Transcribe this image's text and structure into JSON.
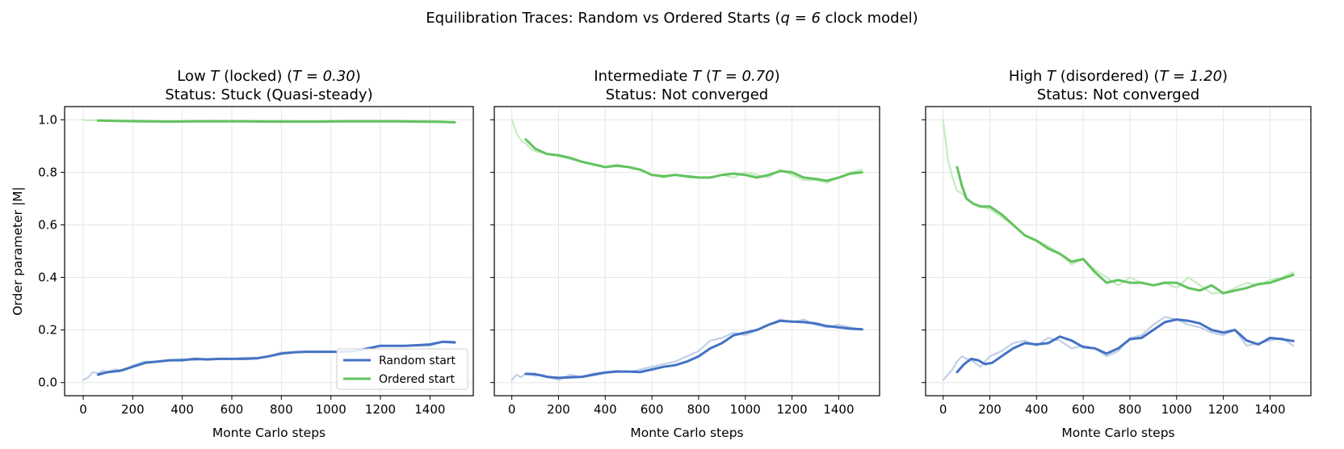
{
  "figure_title": {
    "text_before": "Equilibration Traces: Random vs Ordered Starts (",
    "math": "q = 6",
    "text_after": " clock model)"
  },
  "colors": {
    "random": "#4472c4",
    "random_raw": "#c0cfe8",
    "ordered": "#62c35e",
    "ordered_raw": "#c7ebc3",
    "grid": "#e6e6e6",
    "axis": "#000000"
  },
  "legend": {
    "position": "lower-right",
    "random_label": "Random start",
    "ordered_label": "Ordered start"
  },
  "chart_data": [
    {
      "type": "line",
      "title_line1": {
        "before": "Low ",
        "T": "T",
        "mid": " (locked) (",
        "math": "T = 0.30",
        "after": ")"
      },
      "status": "Status: Stuck (Quasi-steady)",
      "xlabel": "Monte Carlo steps",
      "ylabel": "Order parameter |M|",
      "xlim": [
        -75,
        1575
      ],
      "ylim": [
        -0.05,
        1.05
      ],
      "xticks": [
        0,
        200,
        400,
        600,
        800,
        1000,
        1200,
        1400
      ],
      "yticks": [
        "0.0",
        "0.2",
        "0.4",
        "0.6",
        "0.8",
        "1.0"
      ],
      "series": [
        {
          "name": "Random start (raw)",
          "style": "raw",
          "color_key": "random_raw",
          "x": [
            0,
            20,
            40,
            60,
            80,
            100,
            130,
            160,
            200,
            250,
            300,
            350,
            400,
            450,
            500,
            550,
            600,
            650,
            700,
            750,
            800,
            850,
            900,
            950,
            1000,
            1050,
            1100,
            1150,
            1200,
            1250,
            1300,
            1350,
            1400,
            1450,
            1500
          ],
          "y": [
            0.01,
            0.02,
            0.04,
            0.035,
            0.045,
            0.04,
            0.05,
            0.045,
            0.065,
            0.08,
            0.08,
            0.085,
            0.09,
            0.085,
            0.09,
            0.09,
            0.09,
            0.095,
            0.095,
            0.1,
            0.115,
            0.115,
            0.118,
            0.115,
            0.118,
            0.115,
            0.12,
            0.13,
            0.14,
            0.14,
            0.14,
            0.14,
            0.14,
            0.155,
            0.15
          ]
        },
        {
          "name": "Random start",
          "style": "smooth",
          "color_key": "random",
          "x": [
            60,
            100,
            150,
            200,
            250,
            300,
            350,
            400,
            450,
            500,
            550,
            600,
            650,
            700,
            750,
            800,
            850,
            900,
            950,
            1000,
            1050,
            1100,
            1150,
            1200,
            1250,
            1300,
            1350,
            1400,
            1450,
            1500
          ],
          "y": [
            0.03,
            0.04,
            0.045,
            0.06,
            0.075,
            0.08,
            0.085,
            0.085,
            0.09,
            0.088,
            0.09,
            0.09,
            0.09,
            0.092,
            0.1,
            0.11,
            0.115,
            0.117,
            0.117,
            0.117,
            0.117,
            0.12,
            0.13,
            0.14,
            0.14,
            0.14,
            0.142,
            0.145,
            0.155,
            0.153
          ]
        },
        {
          "name": "Ordered start (raw)",
          "style": "raw",
          "color_key": "ordered_raw",
          "x": [
            0,
            20,
            40,
            60,
            80,
            100,
            150,
            200,
            300,
            400,
            500,
            600,
            700,
            800,
            900,
            1000,
            1100,
            1200,
            1300,
            1400,
            1450,
            1500
          ],
          "y": [
            1.0,
            0.997,
            0.998,
            0.996,
            0.997,
            0.996,
            0.995,
            0.995,
            0.994,
            0.993,
            0.995,
            0.994,
            0.995,
            0.996,
            0.994,
            0.995,
            0.996,
            0.995,
            0.996,
            0.995,
            0.993,
            0.992
          ]
        },
        {
          "name": "Ordered start",
          "style": "smooth",
          "color_key": "ordered",
          "x": [
            60,
            150,
            250,
            350,
            450,
            550,
            650,
            750,
            850,
            950,
            1050,
            1150,
            1250,
            1350,
            1450,
            1500
          ],
          "y": [
            0.997,
            0.995,
            0.994,
            0.993,
            0.994,
            0.994,
            0.994,
            0.993,
            0.993,
            0.993,
            0.994,
            0.994,
            0.994,
            0.993,
            0.992,
            0.99
          ]
        }
      ]
    },
    {
      "type": "line",
      "title_line1": {
        "before": "Intermediate ",
        "T": "T",
        "mid": " (",
        "math": "T = 0.70",
        "after": ")"
      },
      "status": "Status: Not converged",
      "xlabel": "Monte Carlo steps",
      "ylabel": "",
      "xlim": [
        -75,
        1575
      ],
      "ylim": [
        -0.05,
        1.05
      ],
      "xticks": [
        0,
        200,
        400,
        600,
        800,
        1000,
        1200,
        1400
      ],
      "yticks": [
        "",
        "",
        "",
        "",
        "",
        ""
      ],
      "series": [
        {
          "name": "Random start (raw)",
          "style": "raw",
          "color_key": "random_raw",
          "x": [
            0,
            20,
            40,
            60,
            80,
            100,
            130,
            160,
            200,
            250,
            300,
            350,
            400,
            450,
            500,
            550,
            600,
            650,
            700,
            750,
            800,
            850,
            900,
            950,
            1000,
            1050,
            1100,
            1150,
            1200,
            1250,
            1300,
            1350,
            1400,
            1450,
            1500
          ],
          "y": [
            0.01,
            0.03,
            0.02,
            0.035,
            0.03,
            0.025,
            0.03,
            0.02,
            0.01,
            0.03,
            0.02,
            0.035,
            0.04,
            0.045,
            0.04,
            0.05,
            0.06,
            0.07,
            0.08,
            0.1,
            0.12,
            0.16,
            0.17,
            0.19,
            0.18,
            0.2,
            0.22,
            0.24,
            0.23,
            0.24,
            0.22,
            0.21,
            0.22,
            0.21,
            0.2
          ]
        },
        {
          "name": "Random start",
          "style": "smooth",
          "color_key": "random",
          "x": [
            60,
            100,
            150,
            200,
            250,
            300,
            350,
            400,
            450,
            500,
            550,
            600,
            650,
            700,
            750,
            800,
            850,
            900,
            950,
            1000,
            1050,
            1100,
            1150,
            1200,
            1250,
            1300,
            1350,
            1400,
            1450,
            1500
          ],
          "y": [
            0.033,
            0.032,
            0.022,
            0.018,
            0.02,
            0.022,
            0.03,
            0.038,
            0.042,
            0.042,
            0.04,
            0.05,
            0.06,
            0.066,
            0.08,
            0.1,
            0.13,
            0.15,
            0.18,
            0.19,
            0.2,
            0.22,
            0.235,
            0.232,
            0.23,
            0.225,
            0.215,
            0.21,
            0.205,
            0.203
          ]
        },
        {
          "name": "Ordered start (raw)",
          "style": "raw",
          "color_key": "ordered_raw",
          "x": [
            0,
            20,
            40,
            60,
            80,
            100,
            150,
            200,
            250,
            300,
            350,
            400,
            450,
            500,
            550,
            600,
            650,
            700,
            750,
            800,
            850,
            900,
            950,
            1000,
            1050,
            1100,
            1150,
            1200,
            1250,
            1300,
            1350,
            1400,
            1450,
            1500
          ],
          "y": [
            1.0,
            0.95,
            0.92,
            0.91,
            0.89,
            0.88,
            0.87,
            0.86,
            0.85,
            0.84,
            0.83,
            0.82,
            0.83,
            0.82,
            0.81,
            0.79,
            0.78,
            0.79,
            0.78,
            0.78,
            0.78,
            0.79,
            0.78,
            0.8,
            0.79,
            0.78,
            0.81,
            0.79,
            0.77,
            0.77,
            0.76,
            0.78,
            0.8,
            0.81
          ]
        },
        {
          "name": "Ordered start",
          "style": "smooth",
          "color_key": "ordered",
          "x": [
            60,
            100,
            150,
            200,
            250,
            300,
            350,
            400,
            450,
            500,
            550,
            600,
            650,
            700,
            750,
            800,
            850,
            900,
            950,
            1000,
            1050,
            1100,
            1150,
            1200,
            1250,
            1300,
            1350,
            1400,
            1450,
            1500
          ],
          "y": [
            0.925,
            0.89,
            0.87,
            0.865,
            0.855,
            0.84,
            0.83,
            0.82,
            0.825,
            0.82,
            0.81,
            0.79,
            0.785,
            0.79,
            0.785,
            0.78,
            0.78,
            0.79,
            0.795,
            0.79,
            0.78,
            0.79,
            0.805,
            0.8,
            0.78,
            0.775,
            0.768,
            0.78,
            0.795,
            0.8
          ]
        }
      ]
    },
    {
      "type": "line",
      "title_line1": {
        "before": "High ",
        "T": "T",
        "mid": " (disordered) (",
        "math": "T = 1.20",
        "after": ")"
      },
      "status": "Status: Not converged",
      "xlabel": "Monte Carlo steps",
      "ylabel": "",
      "xlim": [
        -75,
        1575
      ],
      "ylim": [
        -0.05,
        1.05
      ],
      "xticks": [
        0,
        200,
        400,
        600,
        800,
        1000,
        1200,
        1400
      ],
      "yticks": [
        "",
        "",
        "",
        "",
        "",
        ""
      ],
      "series": [
        {
          "name": "Random start (raw)",
          "style": "raw",
          "color_key": "random_raw",
          "x": [
            0,
            20,
            40,
            60,
            80,
            100,
            130,
            160,
            200,
            250,
            300,
            350,
            400,
            450,
            500,
            550,
            600,
            650,
            700,
            750,
            800,
            850,
            900,
            950,
            1000,
            1050,
            1100,
            1150,
            1200,
            1250,
            1300,
            1350,
            1400,
            1450,
            1500
          ],
          "y": [
            0.01,
            0.03,
            0.05,
            0.08,
            0.1,
            0.09,
            0.08,
            0.06,
            0.1,
            0.12,
            0.15,
            0.16,
            0.14,
            0.17,
            0.16,
            0.13,
            0.14,
            0.13,
            0.1,
            0.12,
            0.17,
            0.18,
            0.22,
            0.25,
            0.24,
            0.22,
            0.21,
            0.19,
            0.18,
            0.2,
            0.14,
            0.15,
            0.16,
            0.17,
            0.14
          ]
        },
        {
          "name": "Random start",
          "style": "smooth",
          "color_key": "random",
          "x": [
            60,
            90,
            120,
            150,
            180,
            210,
            250,
            300,
            350,
            400,
            450,
            500,
            550,
            600,
            650,
            700,
            750,
            800,
            850,
            900,
            950,
            1000,
            1050,
            1100,
            1150,
            1200,
            1250,
            1300,
            1350,
            1400,
            1450,
            1500
          ],
          "y": [
            0.04,
            0.07,
            0.09,
            0.085,
            0.07,
            0.075,
            0.1,
            0.13,
            0.15,
            0.145,
            0.15,
            0.175,
            0.16,
            0.135,
            0.13,
            0.11,
            0.13,
            0.165,
            0.17,
            0.2,
            0.23,
            0.24,
            0.235,
            0.225,
            0.2,
            0.19,
            0.2,
            0.16,
            0.145,
            0.17,
            0.165,
            0.158
          ]
        },
        {
          "name": "Ordered start (raw)",
          "style": "raw",
          "color_key": "ordered_raw",
          "x": [
            0,
            20,
            40,
            60,
            80,
            100,
            130,
            160,
            200,
            250,
            300,
            350,
            400,
            450,
            500,
            550,
            600,
            650,
            700,
            750,
            800,
            850,
            900,
            950,
            1000,
            1050,
            1100,
            1150,
            1200,
            1250,
            1300,
            1350,
            1400,
            1450,
            1500
          ],
          "y": [
            1.0,
            0.85,
            0.78,
            0.73,
            0.72,
            0.7,
            0.68,
            0.67,
            0.66,
            0.63,
            0.6,
            0.56,
            0.54,
            0.52,
            0.49,
            0.45,
            0.47,
            0.43,
            0.4,
            0.37,
            0.4,
            0.38,
            0.37,
            0.38,
            0.36,
            0.4,
            0.37,
            0.34,
            0.34,
            0.36,
            0.38,
            0.37,
            0.39,
            0.4,
            0.42
          ]
        },
        {
          "name": "Ordered start",
          "style": "smooth",
          "color_key": "ordered",
          "x": [
            60,
            80,
            100,
            130,
            160,
            200,
            250,
            300,
            350,
            400,
            450,
            500,
            550,
            600,
            650,
            700,
            750,
            800,
            850,
            900,
            950,
            1000,
            1050,
            1100,
            1150,
            1200,
            1250,
            1300,
            1350,
            1400,
            1450,
            1500
          ],
          "y": [
            0.82,
            0.75,
            0.7,
            0.68,
            0.67,
            0.67,
            0.64,
            0.6,
            0.56,
            0.54,
            0.51,
            0.49,
            0.46,
            0.47,
            0.42,
            0.38,
            0.39,
            0.38,
            0.38,
            0.37,
            0.38,
            0.38,
            0.36,
            0.35,
            0.37,
            0.34,
            0.35,
            0.36,
            0.375,
            0.38,
            0.395,
            0.41
          ]
        }
      ]
    }
  ]
}
